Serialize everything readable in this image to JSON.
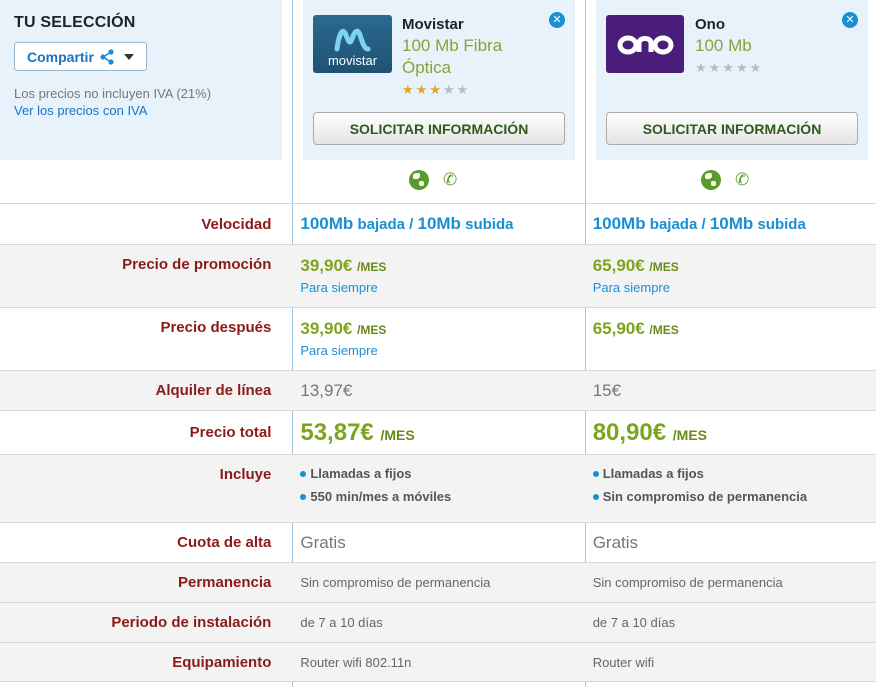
{
  "selection": {
    "title": "TU SELECCIÓN",
    "share_label": "Compartir",
    "vat_note": "Los precios no incluyen IVA (21%)",
    "vat_link": "Ver los precios con IVA"
  },
  "providers": [
    {
      "name": "Movistar",
      "logo_text": "movistar",
      "plan": "100 Mb Fibra Óptica",
      "rating": 3,
      "rating_max": 5,
      "request_label": "SOLICITAR INFORMACIÓN",
      "speed_down": "100Mb",
      "speed_down_suffix": " bajada / ",
      "speed_up": "10Mb",
      "speed_up_suffix": " subida",
      "promo_price": "39,90€",
      "promo_per": "/MES",
      "promo_note": "Para siempre",
      "after_price": "39,90€",
      "after_per": "/MES",
      "after_note": "Para siempre",
      "line_rental": "13,97€",
      "total_price": "53,87€",
      "total_per": "/MES",
      "includes": [
        "Llamadas a fijos",
        "550 min/mes a móviles"
      ],
      "signup_fee": "Gratis",
      "permanence": "Sin compromiso de permanencia",
      "install_period": "de 7 a 10 días",
      "equipment": "Router wifi 802.11n"
    },
    {
      "name": "Ono",
      "logo_text": "ono",
      "plan": "100 Mb",
      "rating": 0,
      "rating_max": 5,
      "request_label": "SOLICITAR INFORMACIÓN",
      "speed_down": "100Mb",
      "speed_down_suffix": " bajada / ",
      "speed_up": "10Mb",
      "speed_up_suffix": " subida",
      "promo_price": "65,90€",
      "promo_per": "/MES",
      "promo_note": "Para siempre",
      "after_price": "65,90€",
      "after_per": "/MES",
      "after_note": "",
      "line_rental": "15€",
      "total_price": "80,90€",
      "total_per": "/MES",
      "includes": [
        "Llamadas a fijos",
        "Sin compromiso de permanencia"
      ],
      "signup_fee": "Gratis",
      "permanence": "Sin compromiso de permanencia",
      "install_period": "de 7 a 10 días",
      "equipment": "Router wifi"
    }
  ],
  "labels": {
    "speed": "Velocidad",
    "promo": "Precio de promoción",
    "after": "Precio después",
    "line_rental": "Alquiler de línea",
    "total": "Precio total",
    "includes": "Incluye",
    "signup_fee": "Cuota de alta",
    "permanence": "Permanencia",
    "install_period": "Periodo de instalación",
    "equipment": "Equipamiento"
  },
  "colors": {
    "accent_blue": "#1a8fd6",
    "price_green": "#7ea41e",
    "label_red": "#8b1a1a",
    "panel_bg": "#e8f2fb"
  }
}
